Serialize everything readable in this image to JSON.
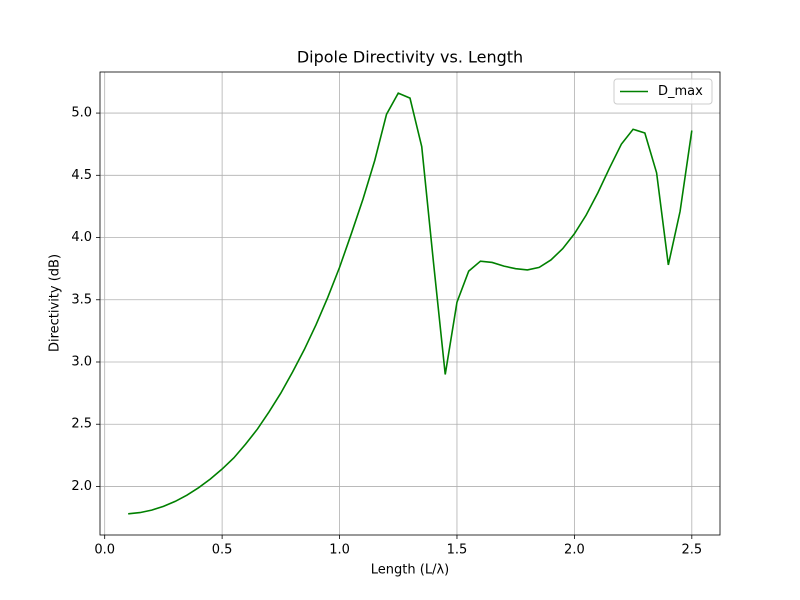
{
  "chart_data": {
    "type": "line",
    "title": "Dipole Directivity vs. Length",
    "x_label": "Length (L/λ)",
    "y_label": "Directivity (dB)",
    "x": [
      0.1,
      0.15,
      0.2,
      0.25,
      0.3,
      0.35,
      0.4,
      0.45,
      0.5,
      0.55,
      0.6,
      0.65,
      0.7,
      0.75,
      0.8,
      0.85,
      0.9,
      0.95,
      1.0,
      1.05,
      1.1,
      1.15,
      1.2,
      1.25,
      1.3,
      1.35,
      1.4,
      1.45,
      1.5,
      1.55,
      1.6,
      1.65,
      1.7,
      1.75,
      1.8,
      1.85,
      1.9,
      1.95,
      2.0,
      2.05,
      2.1,
      2.15,
      2.2,
      2.25,
      2.3,
      2.35,
      2.4,
      2.45,
      2.5
    ],
    "series": [
      {
        "name": "D_max",
        "color": "#008000",
        "values": [
          1.78,
          1.79,
          1.81,
          1.84,
          1.88,
          1.93,
          1.99,
          2.06,
          2.14,
          2.23,
          2.34,
          2.46,
          2.6,
          2.75,
          2.92,
          3.1,
          3.3,
          3.52,
          3.76,
          4.03,
          4.31,
          4.62,
          4.99,
          5.16,
          5.12,
          4.73,
          3.8,
          2.9,
          3.48,
          3.73,
          3.81,
          3.8,
          3.77,
          3.75,
          3.74,
          3.76,
          3.82,
          3.91,
          4.03,
          4.18,
          4.36,
          4.56,
          4.75,
          4.87,
          4.84,
          4.52,
          3.78,
          4.21,
          4.86
        ]
      }
    ],
    "xlim": [
      -0.02,
      2.62
    ],
    "ylim": [
      1.61,
      5.33
    ],
    "xticks": [
      {
        "value": 0,
        "label": "0.0"
      },
      0.5,
      {
        "value": 1,
        "label": "1.0"
      },
      1.5,
      {
        "value": 2,
        "label": "2.0"
      },
      2.5
    ],
    "yticks": [
      {
        "value": 2,
        "label": "2.0"
      },
      2.5,
      {
        "value": 3,
        "label": "3.0"
      },
      3.5,
      {
        "value": 4,
        "label": "4.0"
      },
      4.5,
      {
        "value": 5,
        "label": "5.0"
      }
    ],
    "grid": true,
    "legend_position": "upper-right"
  }
}
